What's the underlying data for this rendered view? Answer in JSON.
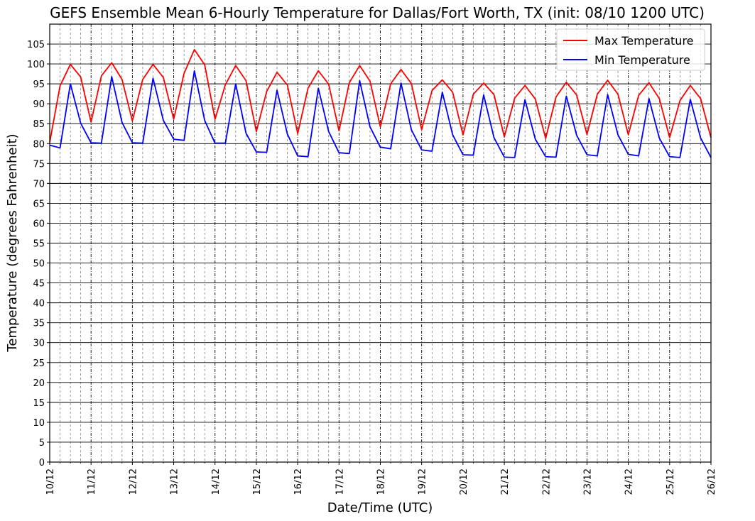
{
  "chart_data": {
    "type": "line",
    "title": "GEFS Ensemble Mean 6-Hourly Temperature for Dallas/Fort Worth, TX (init: 08/10 1200 UTC)",
    "xlabel": "Date/Time (UTC)",
    "ylabel": "Temperature (degrees Fahrenheit)",
    "ylim": [
      0,
      110
    ],
    "yticks": [
      0,
      5,
      10,
      15,
      20,
      25,
      30,
      35,
      40,
      45,
      50,
      55,
      60,
      65,
      70,
      75,
      80,
      85,
      90,
      95,
      100,
      105
    ],
    "xticks": [
      "10/12",
      "11/12",
      "12/12",
      "13/12",
      "14/12",
      "15/12",
      "16/12",
      "17/12",
      "18/12",
      "19/12",
      "20/12",
      "21/12",
      "22/12",
      "23/12",
      "24/12",
      "25/12",
      "26/12"
    ],
    "x_step_hours": 6,
    "grid": true,
    "legend_position": "top-right",
    "series": [
      {
        "name": "Max Temperature",
        "color": "#ff0000",
        "values": [
          80.3,
          94.5,
          99.9,
          96.7,
          85.4,
          97.0,
          100.3,
          96.1,
          85.7,
          96.1,
          99.9,
          96.6,
          86.1,
          97.6,
          103.6,
          99.8,
          86.1,
          94.8,
          99.6,
          95.8,
          83.0,
          93.1,
          97.9,
          94.7,
          82.5,
          93.9,
          98.3,
          94.9,
          83.2,
          95.3,
          99.6,
          95.7,
          84.2,
          95.0,
          98.6,
          95.1,
          83.5,
          93.3,
          96.0,
          92.9,
          82.2,
          92.4,
          95.2,
          92.3,
          81.7,
          91.4,
          94.6,
          91.2,
          81.3,
          91.7,
          95.4,
          92.2,
          82.3,
          92.4,
          95.9,
          92.4,
          82.2,
          92.1,
          95.3,
          91.3,
          81.5,
          90.8,
          94.6,
          91.3,
          81.5
        ]
      },
      {
        "name": "Min Temperature",
        "color": "#0000ff",
        "values": [
          79.6,
          78.9,
          95.0,
          85.1,
          80.2,
          80.1,
          96.8,
          85.3,
          80.2,
          80.1,
          96.4,
          85.8,
          81.1,
          80.8,
          98.3,
          85.8,
          80.1,
          80.1,
          95.0,
          82.6,
          77.9,
          77.8,
          93.4,
          82.4,
          76.9,
          76.7,
          93.9,
          83.0,
          77.7,
          77.5,
          95.8,
          84.2,
          79.1,
          78.7,
          95.2,
          83.5,
          78.4,
          78.1,
          92.9,
          82.2,
          77.2,
          77.1,
          92.2,
          81.5,
          76.6,
          76.5,
          91.0,
          81.1,
          76.7,
          76.6,
          91.9,
          82.1,
          77.2,
          76.9,
          92.3,
          82.2,
          77.3,
          76.9,
          91.3,
          81.4,
          76.7,
          76.5,
          91.1,
          81.4,
          76.5
        ]
      }
    ]
  }
}
